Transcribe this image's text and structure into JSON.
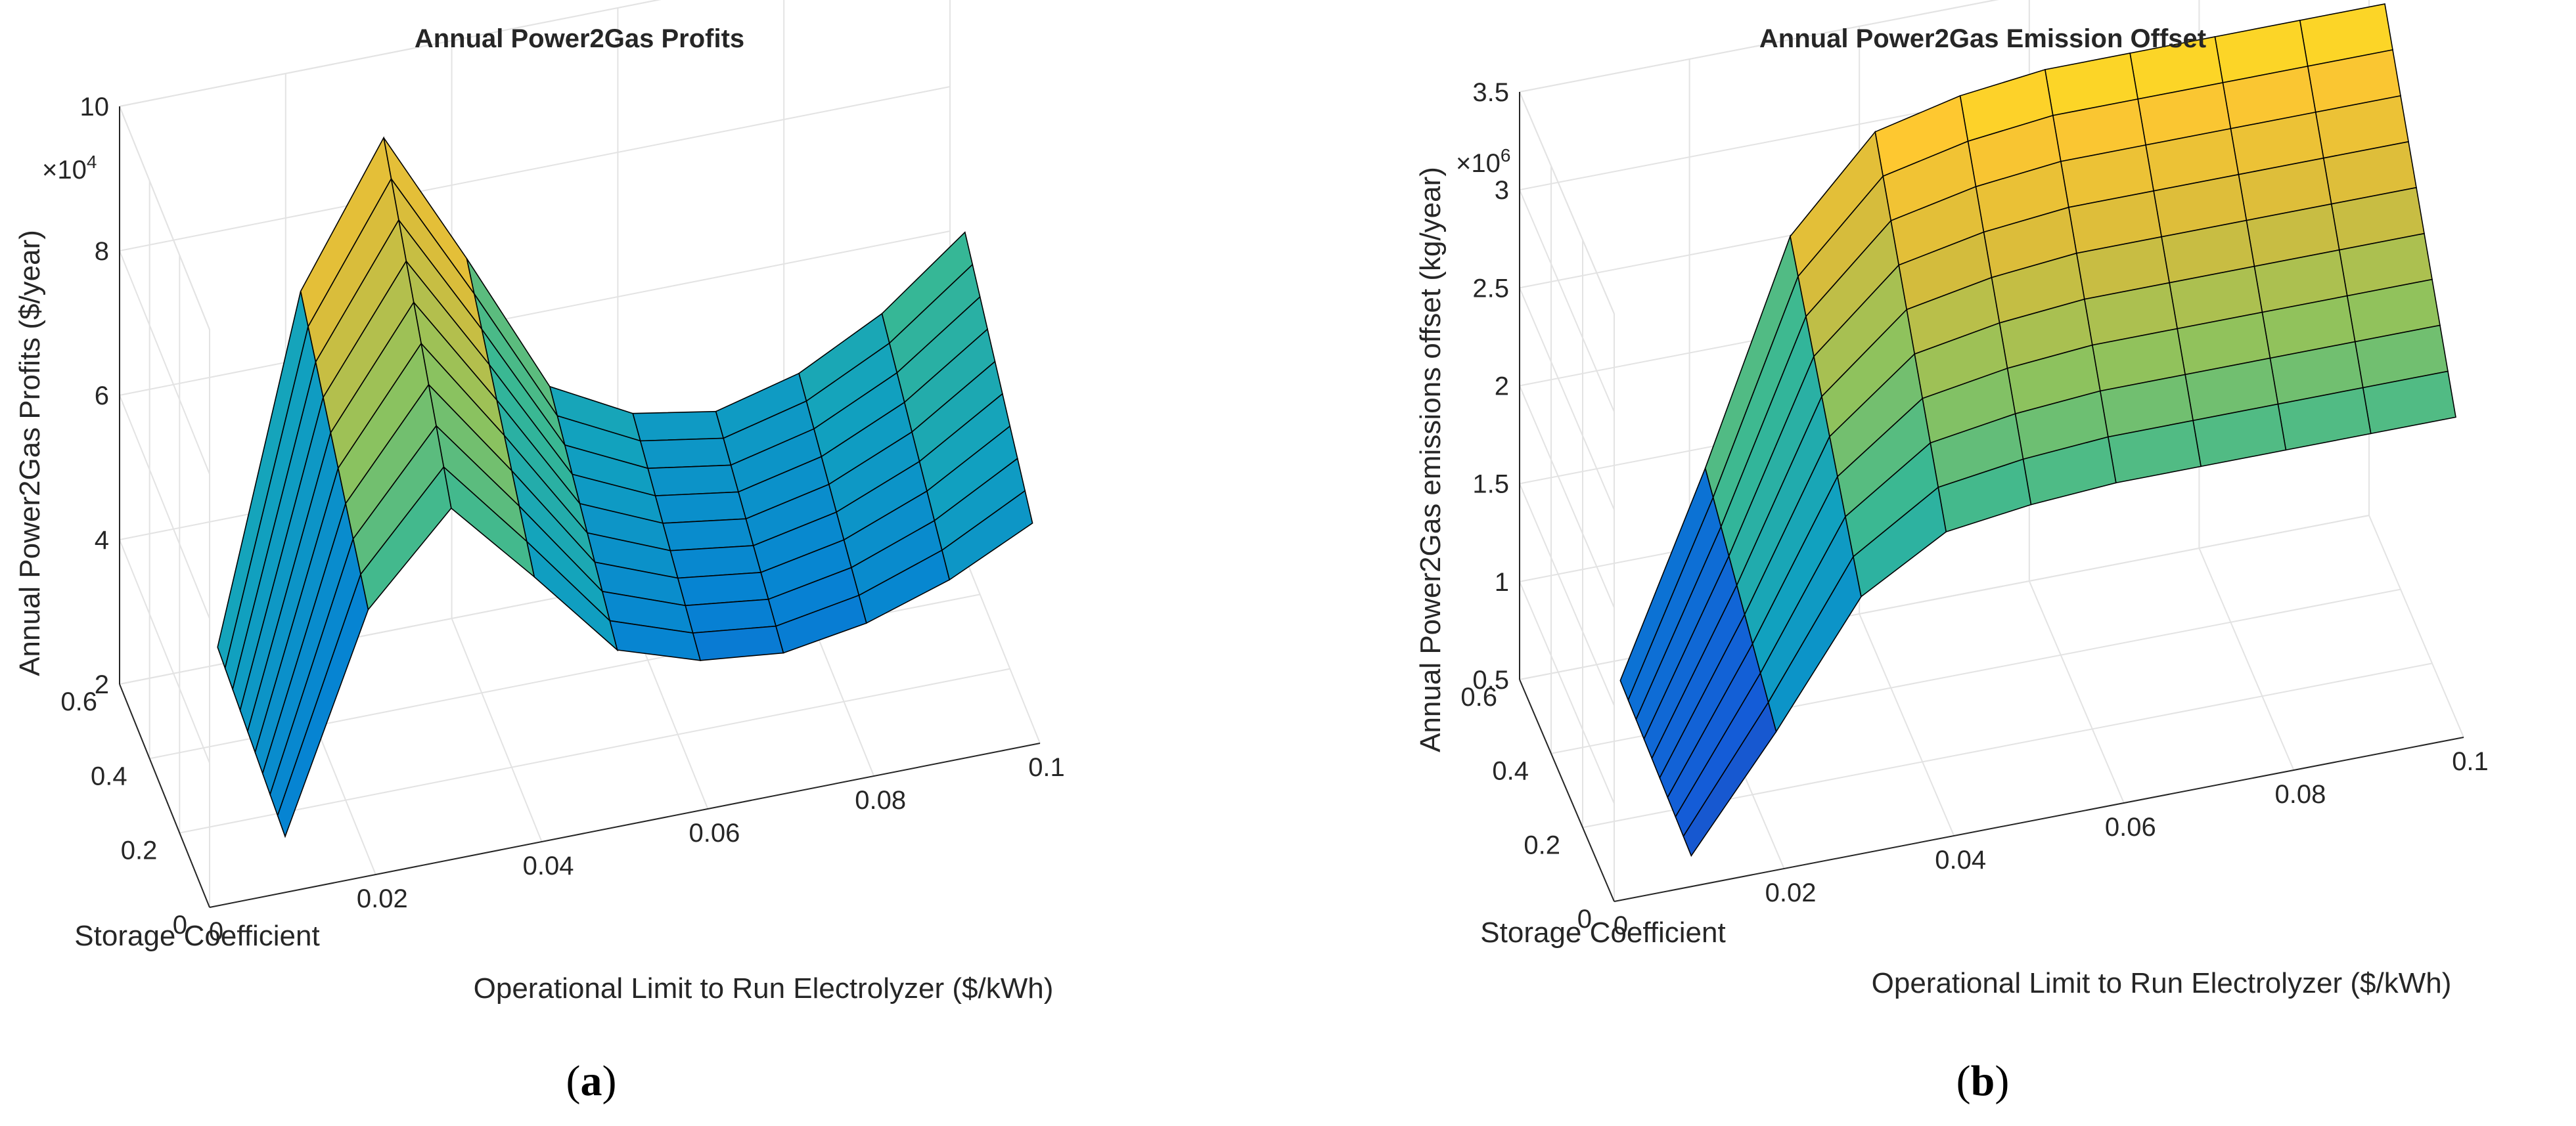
{
  "chart_data": [
    {
      "type": "surface",
      "panel_label": "a",
      "title": "Annual Power2Gas Profits",
      "xlabel": "Operational Limit to Run Electrolyzer ($/kWh)",
      "ylabel": "Storage Coefficient",
      "zlabel": "Annual Power2Gas Profits ($/year)",
      "z_multiplier": "×10",
      "z_exponent": "4",
      "xlim": [
        0,
        0.1
      ],
      "ylim": [
        0,
        0.6
      ],
      "zlim": [
        2,
        10
      ],
      "x_ticks": [
        "0",
        "0.02",
        "0.04",
        "0.06",
        "0.08",
        "0.1"
      ],
      "y_ticks": [
        "0",
        "0.2",
        "0.4",
        "0.6"
      ],
      "z_ticks": [
        "2",
        "4",
        "6",
        "8",
        "10"
      ],
      "x": [
        0.01,
        0.02,
        0.03,
        0.04,
        0.05,
        0.06,
        0.07,
        0.08,
        0.09,
        0.1
      ],
      "y": [
        0.05,
        0.1,
        0.15,
        0.2,
        0.25,
        0.3,
        0.35,
        0.4,
        0.45,
        0.5
      ],
      "z_profile_along_x": [
        2.8,
        7.5,
        9.4,
        7.5,
        5.5,
        4.9,
        4.7,
        5.0,
        5.6,
        6.5
      ],
      "z_at_y_min_scale": 0.62,
      "colormap": "parula"
    },
    {
      "type": "surface",
      "panel_label": "b",
      "title": "Annual Power2Gas Emission Offset",
      "xlabel": "Operational Limit to Run Electrolyzer ($/kWh)",
      "ylabel": "Storage Coefficient",
      "zlabel": "Annual Power2Gas emissions offset (kg/year)",
      "z_multiplier": "×10",
      "z_exponent": "6",
      "xlim": [
        0,
        0.1
      ],
      "ylim": [
        0,
        0.6
      ],
      "zlim": [
        0.5,
        3.5
      ],
      "x_ticks": [
        "0",
        "0.02",
        "0.04",
        "0.06",
        "0.08",
        "0.1"
      ],
      "y_ticks": [
        "0",
        "0.2",
        "0.4",
        "0.6"
      ],
      "z_ticks": [
        "0.5",
        "1",
        "1.5",
        "2",
        "2.5",
        "3",
        "3.5"
      ],
      "x": [
        0.01,
        0.02,
        0.03,
        0.04,
        0.05,
        0.06,
        0.07,
        0.08,
        0.09,
        0.1
      ],
      "y": [
        0.05,
        0.1,
        0.15,
        0.2,
        0.25,
        0.3,
        0.35,
        0.4,
        0.45,
        0.5
      ],
      "z_profile_along_x": [
        0.6,
        1.6,
        2.7,
        3.15,
        3.25,
        3.3,
        3.3,
        3.3,
        3.3,
        3.3
      ],
      "z_at_y_min_scale": 0.55,
      "colormap": "parula"
    }
  ],
  "captions": {
    "a": "a",
    "b": "b"
  },
  "colors": {
    "axis": "#262626",
    "grid": "#e3e3e3",
    "edge": "#000000"
  }
}
